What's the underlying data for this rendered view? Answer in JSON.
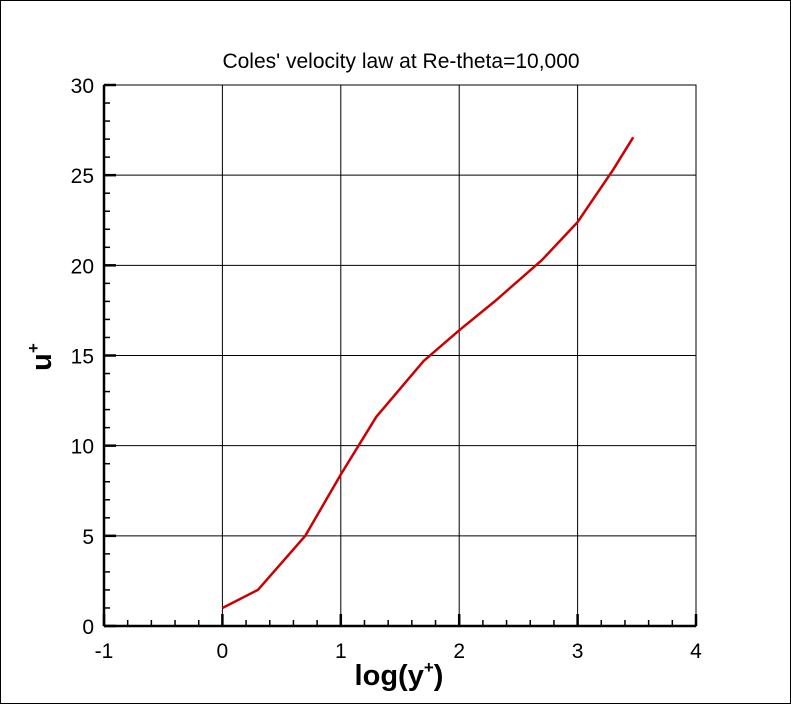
{
  "chart_data": {
    "type": "line",
    "title": "Coles' velocity law at Re-theta=10,000",
    "xlabel_base": "log(y",
    "xlabel_sup": "+",
    "xlabel_close": ")",
    "ylabel_base": "u",
    "ylabel_sup": "+",
    "xlim": [
      -1,
      4
    ],
    "ylim": [
      0,
      30
    ],
    "x_ticks": [
      -1,
      0,
      1,
      2,
      3,
      4
    ],
    "y_ticks": [
      0,
      5,
      10,
      15,
      20,
      25,
      30
    ],
    "x_tick_labels": [
      "-1",
      "0",
      "1",
      "2",
      "3",
      "4"
    ],
    "y_tick_labels": [
      "0",
      "5",
      "10",
      "15",
      "20",
      "25",
      "30"
    ],
    "grid": true,
    "series": [
      {
        "color": "#cc0000",
        "x": [
          0,
          0.3,
          0.7,
          1.0,
          1.3,
          1.7,
          2.0,
          2.3,
          2.7,
          3.0,
          3.3,
          3.47
        ],
        "y": [
          1.0,
          2.0,
          5.0,
          8.4,
          11.6,
          14.7,
          16.4,
          18.0,
          20.3,
          22.4,
          25.3,
          27.1
        ]
      }
    ]
  }
}
